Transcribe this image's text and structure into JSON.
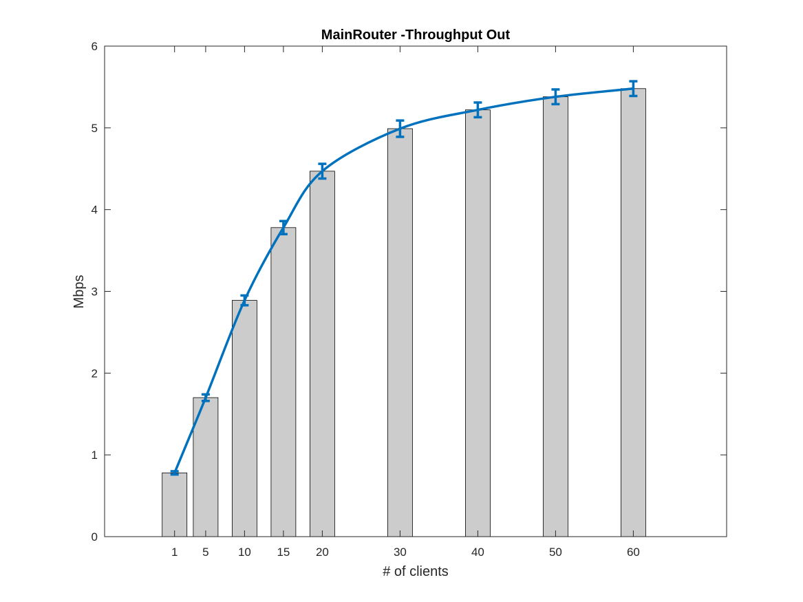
{
  "chart_data": {
    "type": "bar",
    "title": "MainRouter -Throughput Out",
    "xlabel": "# of clients",
    "ylabel": "Mbps",
    "x": [
      1,
      5,
      10,
      15,
      20,
      30,
      40,
      50,
      60
    ],
    "bar_values": [
      0.78,
      1.7,
      2.89,
      3.78,
      4.47,
      4.99,
      5.22,
      5.38,
      5.48
    ],
    "series": [
      {
        "type": "line",
        "values": [
          0.78,
          1.7,
          2.89,
          3.78,
          4.47,
          4.99,
          5.22,
          5.38,
          5.48
        ],
        "error": [
          0.02,
          0.04,
          0.06,
          0.08,
          0.09,
          0.1,
          0.09,
          0.09,
          0.09
        ]
      }
    ],
    "xlim": [
      -8,
      72
    ],
    "ylim": [
      0,
      6
    ],
    "yticks": [
      0,
      1,
      2,
      3,
      4,
      5,
      6
    ],
    "xticks": [
      1,
      5,
      10,
      15,
      20,
      30,
      40,
      50,
      60
    ],
    "grid": false,
    "colors": {
      "bar_fill": "#cccccc",
      "bar_edge": "#000000",
      "line": "#0072bd"
    }
  }
}
